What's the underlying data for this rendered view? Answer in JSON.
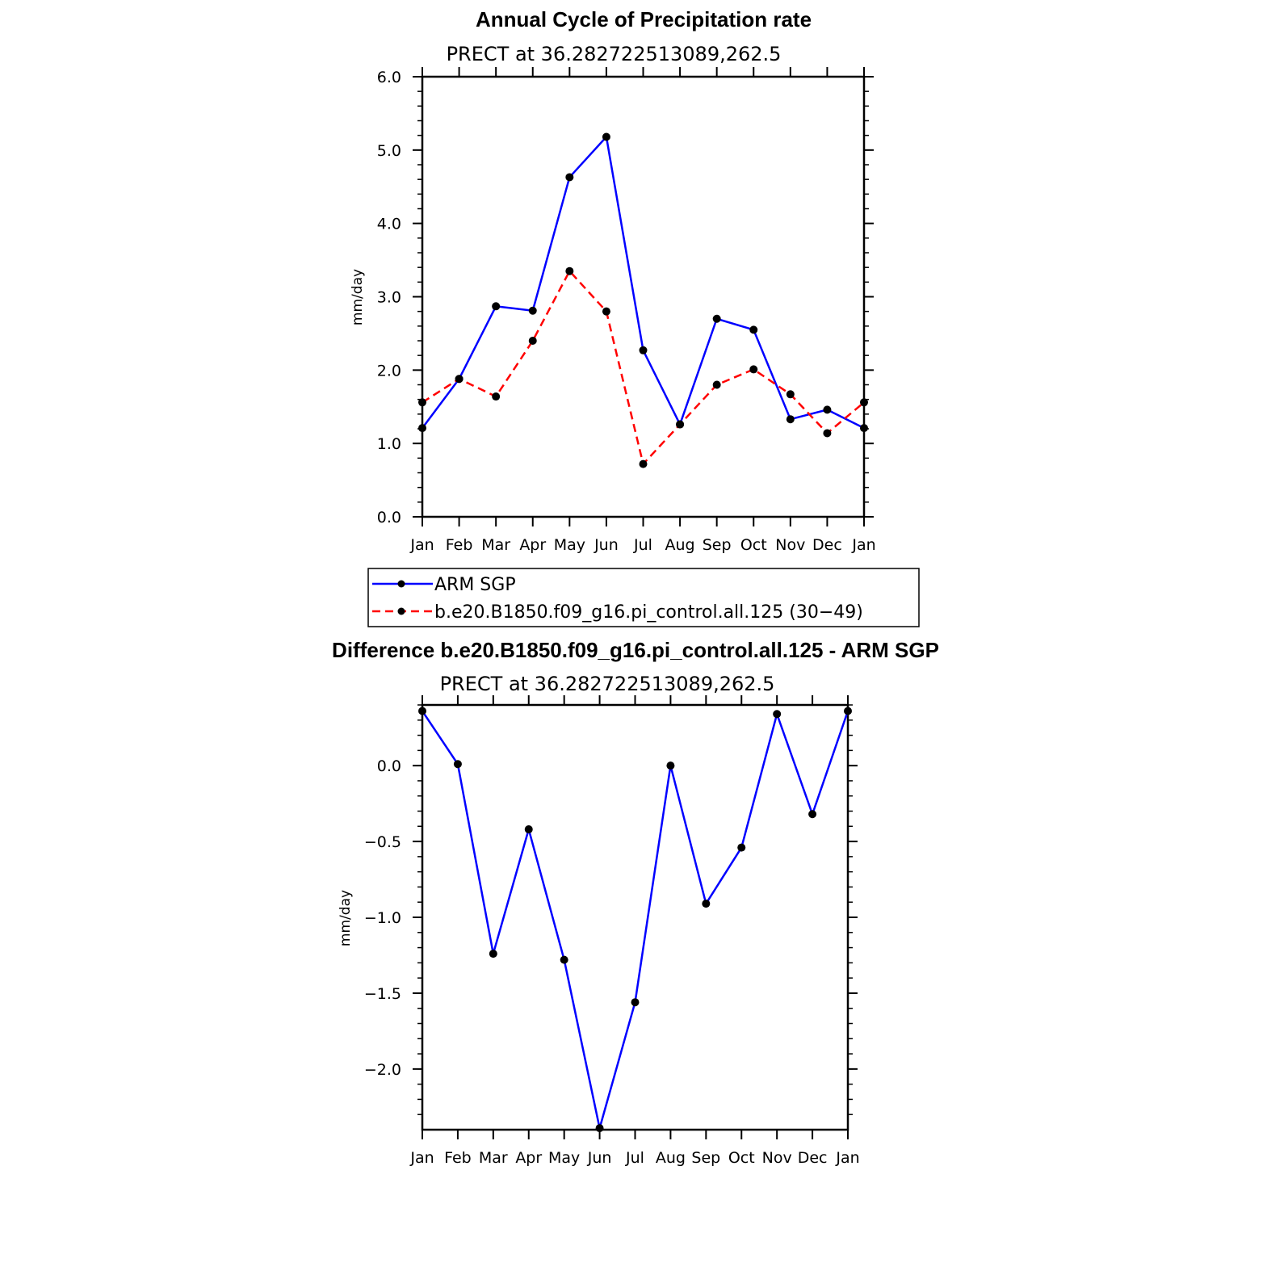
{
  "chart_data": [
    {
      "type": "line",
      "title": "Annual Cycle of Precipitation rate",
      "subtitle": "PRECT at 36.282722513089,262.5",
      "ylabel": "mm/day",
      "xlabel": "",
      "ylim": [
        0,
        6
      ],
      "yticks": [
        "0.0",
        "1.0",
        "2.0",
        "3.0",
        "4.0",
        "5.0",
        "6.0"
      ],
      "categories": [
        "Jan",
        "Feb",
        "Mar",
        "Apr",
        "May",
        "Jun",
        "Jul",
        "Aug",
        "Sep",
        "Oct",
        "Nov",
        "Dec",
        "Jan"
      ],
      "series": [
        {
          "name": "ARM SGP",
          "color": "#0000ff",
          "style": "solid",
          "values": [
            1.21,
            1.88,
            2.87,
            2.81,
            4.63,
            5.18,
            2.27,
            1.26,
            2.7,
            2.55,
            1.33,
            1.46,
            1.21
          ]
        },
        {
          "name": "b.e20.B1850.f09_g16.pi_control.all.125 (30−49)",
          "color": "#ff0000",
          "style": "dashed",
          "values": [
            1.56,
            1.88,
            1.64,
            2.4,
            3.35,
            2.8,
            0.72,
            1.26,
            1.8,
            2.01,
            1.67,
            1.14,
            1.56
          ]
        }
      ],
      "legend": "below",
      "grid": false
    },
    {
      "type": "line",
      "title": "Difference b.e20.B1850.f09_g16.pi_control.all.125 - ARM SGP",
      "subtitle": "PRECT at 36.282722513089,262.5",
      "ylabel": "mm/day",
      "xlabel": "",
      "ylim": [
        -2.4,
        0.4
      ],
      "yticks": [
        "−2.0",
        "−1.5",
        "−1.0",
        "−0.5",
        "0.0"
      ],
      "ytick_values": [
        -2.0,
        -1.5,
        -1.0,
        -0.5,
        0.0
      ],
      "categories": [
        "Jan",
        "Feb",
        "Mar",
        "Apr",
        "May",
        "Jun",
        "Jul",
        "Aug",
        "Sep",
        "Oct",
        "Nov",
        "Dec",
        "Jan"
      ],
      "series": [
        {
          "color": "#0000ff",
          "style": "solid",
          "values": [
            0.36,
            0.01,
            -1.24,
            -0.42,
            -1.28,
            -2.39,
            -1.56,
            0.0,
            -0.91,
            -0.54,
            0.34,
            -0.32,
            0.36
          ]
        }
      ],
      "grid": false
    }
  ]
}
